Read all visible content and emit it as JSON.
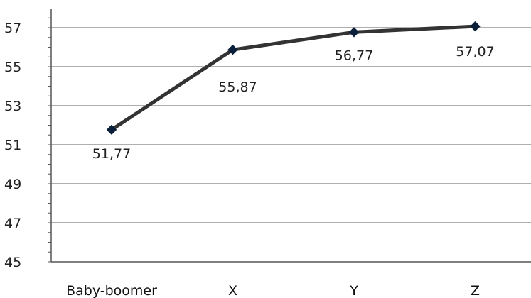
{
  "chart_data": {
    "type": "line",
    "categories": [
      "Baby-boomer",
      "X",
      "Y",
      "Z"
    ],
    "series": [
      {
        "values": [
          51.77,
          55.87,
          56.77,
          57.07
        ]
      }
    ],
    "data_labels": [
      "51,77",
      "55,87",
      "56,77",
      "57,07"
    ],
    "y_ticks": [
      45,
      47,
      49,
      51,
      53,
      55,
      57
    ],
    "ylim": [
      45,
      58
    ],
    "grid": true,
    "legend": "none",
    "colors": {
      "line": "#333333",
      "marker": "#0b1f3a",
      "grid": "#7f7f7f",
      "axis": "#555555"
    }
  }
}
